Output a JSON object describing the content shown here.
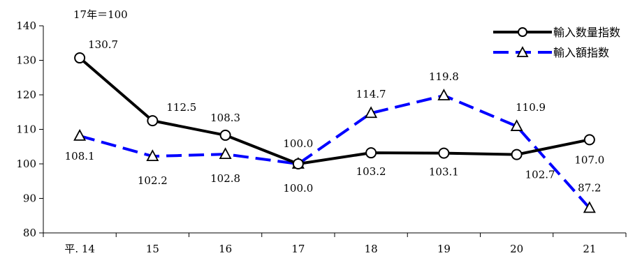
{
  "chart_data": {
    "type": "line",
    "note": "17年＝100",
    "categories": [
      "平. 14",
      "15",
      "16",
      "17",
      "18",
      "19",
      "20",
      "21"
    ],
    "ylim": [
      80,
      140
    ],
    "yticks": [
      80,
      90,
      100,
      110,
      120,
      130,
      140
    ],
    "legend_position": "top-right",
    "grid": false,
    "series": [
      {
        "name": "輸入数量指数",
        "values": [
          130.7,
          112.5,
          108.3,
          100.0,
          103.2,
          103.1,
          102.7,
          107.0
        ],
        "labels": [
          "130.7",
          "112.5",
          "108.3",
          "100.0",
          "103.2",
          "103.1",
          "102.7",
          "107.0"
        ],
        "color": "#000000",
        "style": "solid",
        "marker": "circle"
      },
      {
        "name": "輸入額指数",
        "values": [
          108.1,
          102.2,
          102.8,
          100.0,
          114.7,
          119.8,
          110.9,
          87.2
        ],
        "labels": [
          "108.1",
          "102.2",
          "102.8",
          "100.0",
          "114.7",
          "119.8",
          "110.9",
          "87.2"
        ],
        "color": "#0000ff",
        "style": "dashed",
        "marker": "triangle"
      }
    ]
  }
}
